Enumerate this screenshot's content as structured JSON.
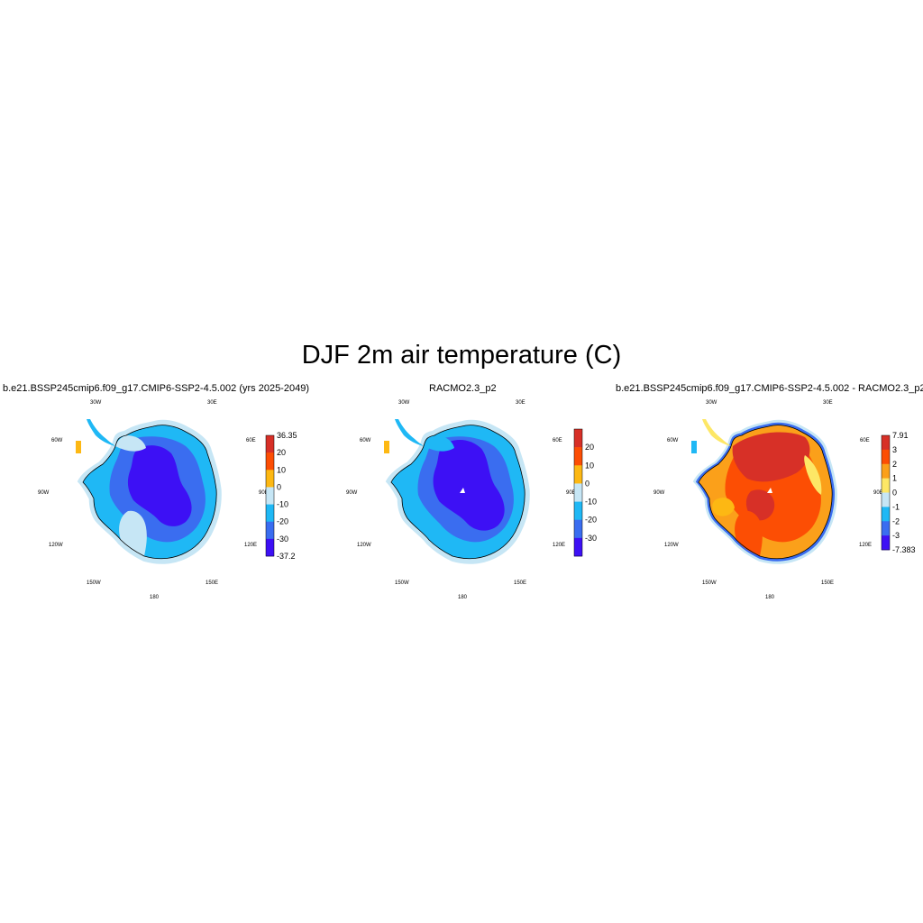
{
  "title": "DJF 2m air temperature (C)",
  "panels": [
    {
      "title": "b.e21.BSSP245cmip6.f09_g17.CMIP6-SSP2-4.5.002 (yrs 2025-2049)",
      "colorbar": {
        "labels": [
          "36.35",
          "20",
          "10",
          "0",
          "-10",
          "-20",
          "-30",
          "-37.2"
        ],
        "colors": [
          "#d73027",
          "#fc4e04",
          "#fdb813",
          "#c6e6f5",
          "#1fb8f5",
          "#3a6df0",
          "#3d10f5"
        ]
      }
    },
    {
      "title": "RACMO2.3_p2",
      "colorbar": {
        "labels": [
          "20",
          "10",
          "0",
          "-10",
          "-20",
          "-30"
        ],
        "colors": [
          "#d73027",
          "#fc4e04",
          "#fdb813",
          "#c6e6f5",
          "#1fb8f5",
          "#3a6df0",
          "#3d10f5"
        ]
      }
    },
    {
      "title": "b.e21.BSSP245cmip6.f09_g17.CMIP6-SSP2-4.5.002 - RACMO2.3_p2",
      "colorbar": {
        "labels": [
          "7.91",
          "3",
          "2",
          "1",
          "0",
          "-1",
          "-2",
          "-3",
          "-7.383"
        ],
        "colors": [
          "#d73027",
          "#fc4e04",
          "#fba01a",
          "#fde766",
          "#c6e6f5",
          "#1fb8f5",
          "#3a6df0",
          "#3d10f5"
        ]
      }
    }
  ],
  "longitude_labels": [
    "30W",
    "30E",
    "60W",
    "60E",
    "90W",
    "90E",
    "120W",
    "120E",
    "150W",
    "150E",
    "180"
  ]
}
